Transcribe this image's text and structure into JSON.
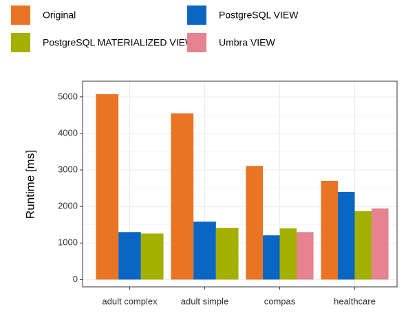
{
  "chart_data": {
    "type": "bar",
    "categories": [
      "adult complex",
      "adult simple",
      "compas",
      "healthcare"
    ],
    "series": [
      {
        "name": "Original",
        "color": "#e87424",
        "values": [
          5075,
          4550,
          3110,
          2700
        ]
      },
      {
        "name": "PostgreSQL VIEW",
        "color": "#0a66c2",
        "values": [
          1300,
          1585,
          1210,
          2400
        ]
      },
      {
        "name": "PostgreSQL MATERIALIZED VIEW",
        "color": "#a3b000",
        "values": [
          1260,
          1415,
          1400,
          1870
        ]
      },
      {
        "name": "Umbra VIEW",
        "color": "#e58490",
        "values": [
          null,
          null,
          1300,
          1945
        ]
      }
    ],
    "y_label": "Runtime [ms]",
    "ylim": [
      -200,
      5430
    ],
    "yticks": [
      0,
      1000,
      2000,
      3000,
      4000,
      5000
    ],
    "grid": true,
    "legend": "top"
  }
}
